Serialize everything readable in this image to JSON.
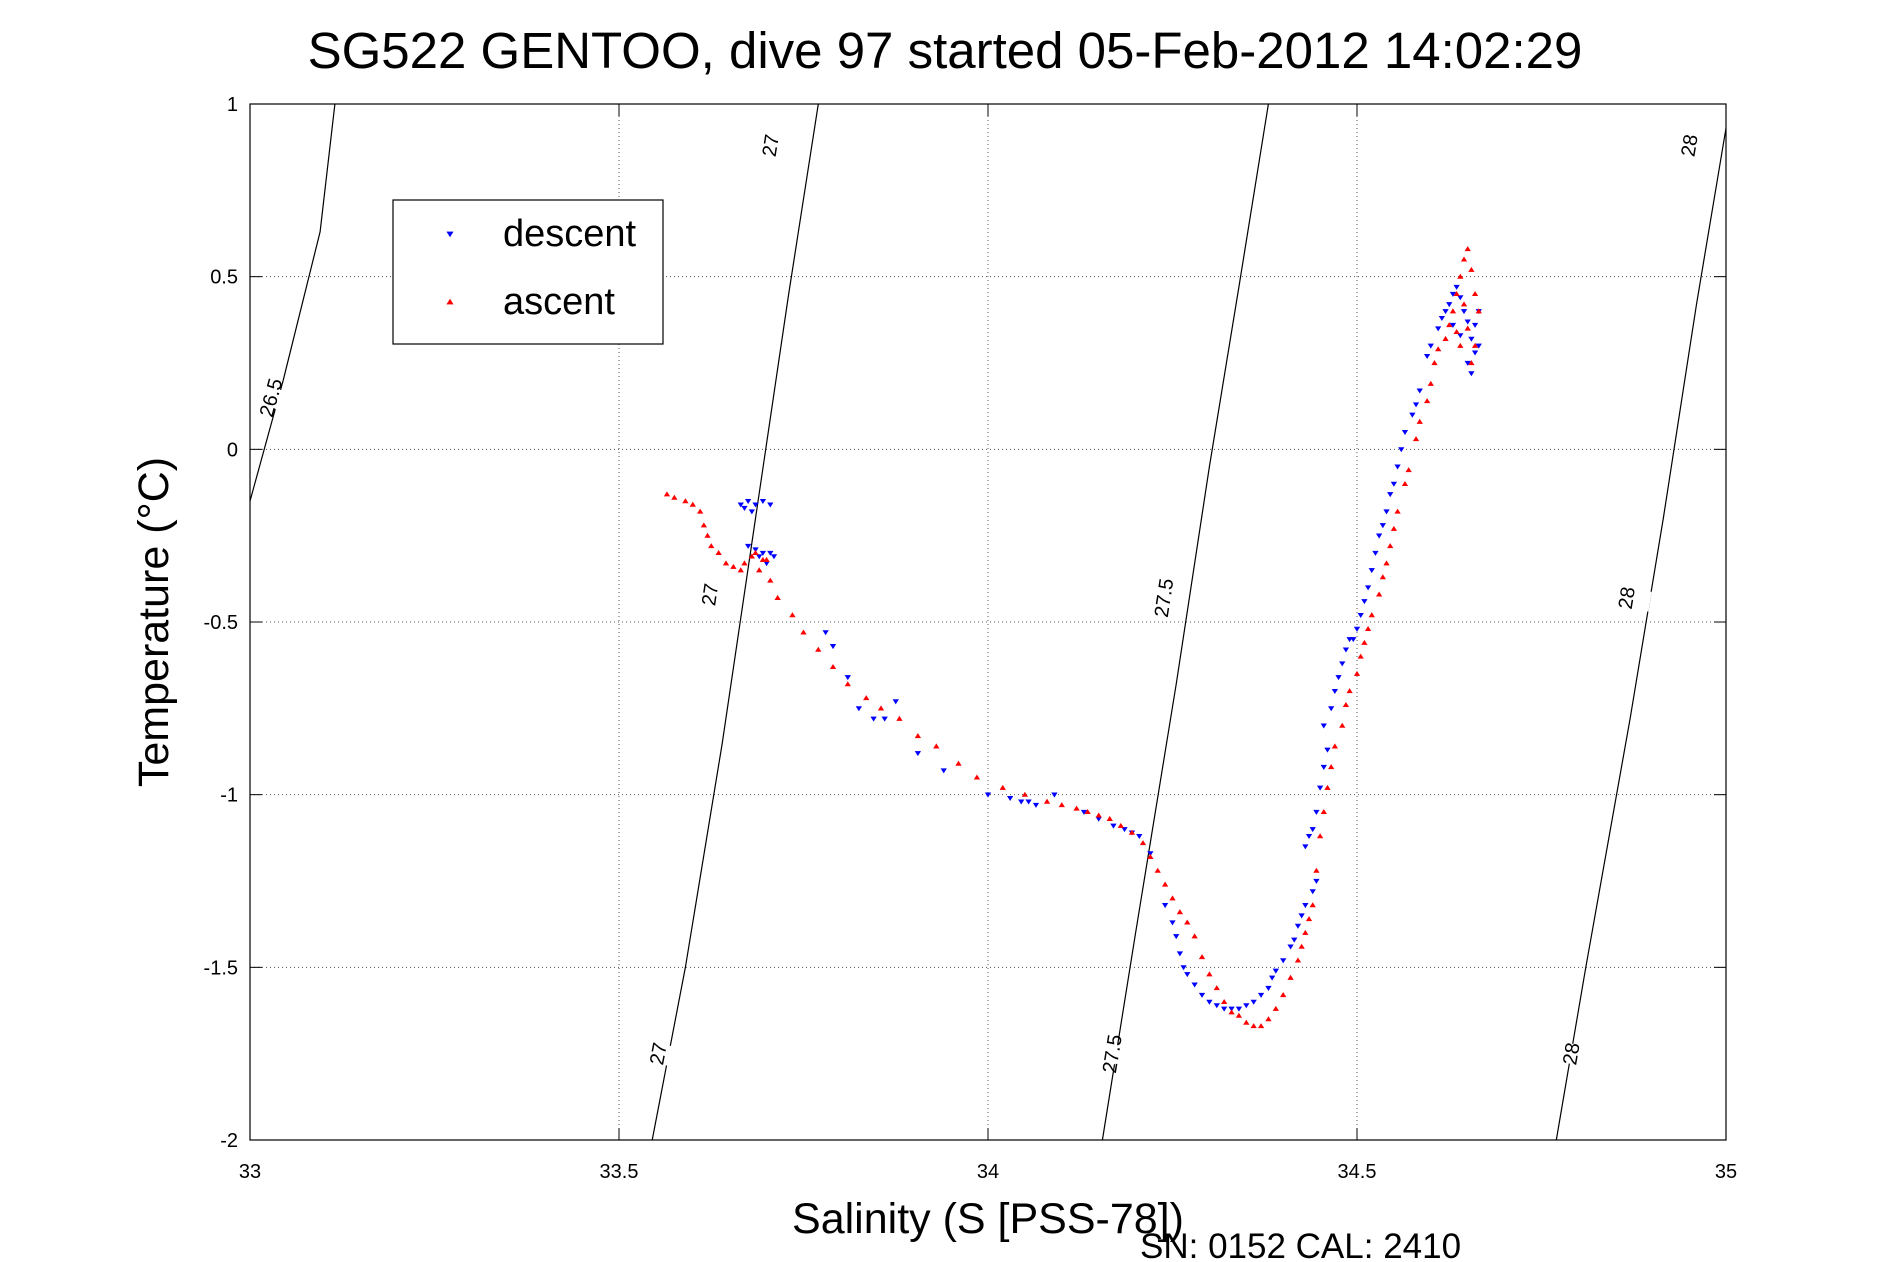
{
  "chart_data": {
    "type": "scatter",
    "title": "SG522 GENTOO, dive 97 started 05-Feb-2012 14:02:29",
    "xlabel": "Salinity (S [PSS-78])",
    "ylabel": "Temperature (°C)",
    "xlim": [
      33,
      35
    ],
    "ylim": [
      -2,
      1
    ],
    "xticks": [
      "33",
      "33.5",
      "34",
      "34.5",
      "35"
    ],
    "yticks": [
      "-2",
      "-1.5",
      "-1",
      "-0.5",
      "0",
      "0.5",
      "1"
    ],
    "grid": true,
    "legend_position": "top-left",
    "footer": "SN: 0152  CAL: 2410",
    "density_contours": [
      {
        "label": "26.5",
        "points": [
          [
            33.0,
            -0.15
          ],
          [
            33.045,
            0.2
          ],
          [
            33.095,
            0.63
          ],
          [
            33.115,
            1.0
          ]
        ],
        "label_at": [
          33.028,
          0.15
        ]
      },
      {
        "label": "27",
        "points": [
          [
            33.545,
            -2.0
          ],
          [
            33.59,
            -1.5
          ],
          [
            33.64,
            -0.85
          ],
          [
            33.685,
            -0.2
          ],
          [
            33.73,
            0.45
          ],
          [
            33.77,
            1.0
          ]
        ],
        "label_at": [
          [
            33.553,
            -1.75
          ],
          [
            33.623,
            -0.42
          ],
          [
            33.705,
            0.88
          ]
        ]
      },
      {
        "label": "27.5",
        "points": [
          [
            34.155,
            -2.0
          ],
          [
            34.2,
            -1.4
          ],
          [
            34.255,
            -0.68
          ],
          [
            34.3,
            -0.05
          ],
          [
            34.34,
            0.47
          ],
          [
            34.38,
            1.0
          ]
        ],
        "label_at": [
          [
            34.168,
            -1.75
          ],
          [
            34.238,
            -0.43
          ]
        ]
      },
      {
        "label": "28",
        "points": [
          [
            34.77,
            -2.0
          ],
          [
            34.81,
            -1.5
          ],
          [
            34.87,
            -0.78
          ],
          [
            34.915,
            -0.2
          ],
          [
            34.96,
            0.42
          ],
          [
            35.0,
            0.93
          ]
        ],
        "label_at": [
          [
            34.79,
            -1.75
          ],
          [
            34.865,
            -0.43
          ],
          [
            34.95,
            0.88
          ]
        ]
      }
    ],
    "series": [
      {
        "name": "descent",
        "color": "#0000ff",
        "marker": "triangle-down",
        "points": [
          [
            33.665,
            -0.16
          ],
          [
            33.675,
            -0.15
          ],
          [
            33.685,
            -0.16
          ],
          [
            33.695,
            -0.15
          ],
          [
            33.705,
            -0.16
          ],
          [
            33.67,
            -0.17
          ],
          [
            33.68,
            -0.18
          ],
          [
            33.675,
            -0.28
          ],
          [
            33.685,
            -0.29
          ],
          [
            33.695,
            -0.3
          ],
          [
            33.705,
            -0.3
          ],
          [
            33.71,
            -0.31
          ],
          [
            33.7,
            -0.33
          ],
          [
            33.69,
            -0.31
          ],
          [
            33.78,
            -0.53
          ],
          [
            33.79,
            -0.57
          ],
          [
            33.81,
            -0.66
          ],
          [
            33.825,
            -0.75
          ],
          [
            33.845,
            -0.78
          ],
          [
            33.86,
            -0.78
          ],
          [
            33.875,
            -0.73
          ],
          [
            33.905,
            -0.88
          ],
          [
            33.94,
            -0.93
          ],
          [
            34.0,
            -1.0
          ],
          [
            34.03,
            -1.01
          ],
          [
            34.045,
            -1.02
          ],
          [
            34.055,
            -1.02
          ],
          [
            34.065,
            -1.03
          ],
          [
            34.09,
            -1.0
          ],
          [
            34.13,
            -1.05
          ],
          [
            34.15,
            -1.07
          ],
          [
            34.17,
            -1.09
          ],
          [
            34.185,
            -1.1
          ],
          [
            34.195,
            -1.11
          ],
          [
            34.205,
            -1.12
          ],
          [
            34.22,
            -1.17
          ],
          [
            34.24,
            -1.32
          ],
          [
            34.25,
            -1.37
          ],
          [
            34.255,
            -1.41
          ],
          [
            34.26,
            -1.46
          ],
          [
            34.265,
            -1.5
          ],
          [
            34.27,
            -1.52
          ],
          [
            34.28,
            -1.55
          ],
          [
            34.29,
            -1.58
          ],
          [
            34.3,
            -1.6
          ],
          [
            34.31,
            -1.61
          ],
          [
            34.32,
            -1.62
          ],
          [
            34.33,
            -1.62
          ],
          [
            34.34,
            -1.62
          ],
          [
            34.35,
            -1.61
          ],
          [
            34.36,
            -1.6
          ],
          [
            34.37,
            -1.58
          ],
          [
            34.38,
            -1.56
          ],
          [
            34.385,
            -1.53
          ],
          [
            34.39,
            -1.51
          ],
          [
            34.4,
            -1.48
          ],
          [
            34.41,
            -1.44
          ],
          [
            34.415,
            -1.42
          ],
          [
            34.42,
            -1.38
          ],
          [
            34.425,
            -1.35
          ],
          [
            34.43,
            -1.32
          ],
          [
            34.44,
            -1.28
          ],
          [
            34.445,
            -1.25
          ],
          [
            34.43,
            -1.15
          ],
          [
            34.435,
            -1.12
          ],
          [
            34.44,
            -1.1
          ],
          [
            34.445,
            -1.05
          ],
          [
            34.45,
            -0.98
          ],
          [
            34.455,
            -0.92
          ],
          [
            34.46,
            -0.87
          ],
          [
            34.455,
            -0.8
          ],
          [
            34.465,
            -0.75
          ],
          [
            34.47,
            -0.7
          ],
          [
            34.475,
            -0.66
          ],
          [
            34.48,
            -0.62
          ],
          [
            34.485,
            -0.58
          ],
          [
            34.49,
            -0.55
          ],
          [
            34.495,
            -0.55
          ],
          [
            34.5,
            -0.52
          ],
          [
            34.505,
            -0.48
          ],
          [
            34.51,
            -0.44
          ],
          [
            34.515,
            -0.4
          ],
          [
            34.52,
            -0.35
          ],
          [
            34.525,
            -0.3
          ],
          [
            34.53,
            -0.25
          ],
          [
            34.535,
            -0.22
          ],
          [
            34.54,
            -0.18
          ],
          [
            34.545,
            -0.13
          ],
          [
            34.55,
            -0.1
          ],
          [
            34.555,
            -0.05
          ],
          [
            34.56,
            0.0
          ],
          [
            34.565,
            0.05
          ],
          [
            34.575,
            0.1
          ],
          [
            34.58,
            0.13
          ],
          [
            34.585,
            0.17
          ],
          [
            34.595,
            0.27
          ],
          [
            34.6,
            0.3
          ],
          [
            34.61,
            0.35
          ],
          [
            34.615,
            0.38
          ],
          [
            34.62,
            0.4
          ],
          [
            34.625,
            0.42
          ],
          [
            34.63,
            0.45
          ],
          [
            34.635,
            0.47
          ],
          [
            34.64,
            0.44
          ],
          [
            34.645,
            0.4
          ],
          [
            34.65,
            0.37
          ],
          [
            34.655,
            0.32
          ],
          [
            34.66,
            0.28
          ],
          [
            34.665,
            0.3
          ],
          [
            34.66,
            0.36
          ],
          [
            34.665,
            0.4
          ],
          [
            34.655,
            0.22
          ],
          [
            34.65,
            0.25
          ],
          [
            34.64,
            0.33
          ],
          [
            34.63,
            0.36
          ]
        ]
      },
      {
        "name": "ascent",
        "color": "#ff0000",
        "marker": "triangle-up",
        "points": [
          [
            33.565,
            -0.13
          ],
          [
            33.575,
            -0.14
          ],
          [
            33.59,
            -0.15
          ],
          [
            33.6,
            -0.16
          ],
          [
            33.61,
            -0.18
          ],
          [
            33.615,
            -0.22
          ],
          [
            33.62,
            -0.25
          ],
          [
            33.625,
            -0.28
          ],
          [
            33.635,
            -0.3
          ],
          [
            33.645,
            -0.33
          ],
          [
            33.655,
            -0.34
          ],
          [
            33.665,
            -0.35
          ],
          [
            33.67,
            -0.33
          ],
          [
            33.68,
            -0.31
          ],
          [
            33.685,
            -0.3
          ],
          [
            33.695,
            -0.32
          ],
          [
            33.7,
            -0.32
          ],
          [
            33.69,
            -0.35
          ],
          [
            33.705,
            -0.38
          ],
          [
            33.715,
            -0.43
          ],
          [
            33.735,
            -0.48
          ],
          [
            33.75,
            -0.53
          ],
          [
            33.77,
            -0.58
          ],
          [
            33.79,
            -0.63
          ],
          [
            33.81,
            -0.68
          ],
          [
            33.835,
            -0.72
          ],
          [
            33.855,
            -0.75
          ],
          [
            33.88,
            -0.78
          ],
          [
            33.905,
            -0.83
          ],
          [
            33.93,
            -0.86
          ],
          [
            33.96,
            -0.91
          ],
          [
            33.985,
            -0.95
          ],
          [
            34.02,
            -0.98
          ],
          [
            34.05,
            -1.0
          ],
          [
            34.08,
            -1.02
          ],
          [
            34.1,
            -1.03
          ],
          [
            34.12,
            -1.04
          ],
          [
            34.135,
            -1.05
          ],
          [
            34.15,
            -1.06
          ],
          [
            34.165,
            -1.07
          ],
          [
            34.18,
            -1.09
          ],
          [
            34.195,
            -1.11
          ],
          [
            34.21,
            -1.14
          ],
          [
            34.22,
            -1.18
          ],
          [
            34.23,
            -1.22
          ],
          [
            34.24,
            -1.26
          ],
          [
            34.25,
            -1.3
          ],
          [
            34.26,
            -1.34
          ],
          [
            34.27,
            -1.37
          ],
          [
            34.28,
            -1.41
          ],
          [
            34.29,
            -1.47
          ],
          [
            34.3,
            -1.52
          ],
          [
            34.31,
            -1.56
          ],
          [
            34.32,
            -1.6
          ],
          [
            34.33,
            -1.63
          ],
          [
            34.34,
            -1.64
          ],
          [
            34.35,
            -1.66
          ],
          [
            34.36,
            -1.67
          ],
          [
            34.37,
            -1.67
          ],
          [
            34.38,
            -1.65
          ],
          [
            34.39,
            -1.62
          ],
          [
            34.4,
            -1.58
          ],
          [
            34.41,
            -1.53
          ],
          [
            34.42,
            -1.48
          ],
          [
            34.425,
            -1.44
          ],
          [
            34.43,
            -1.4
          ],
          [
            34.435,
            -1.36
          ],
          [
            34.44,
            -1.32
          ],
          [
            34.445,
            -1.22
          ],
          [
            34.45,
            -1.12
          ],
          [
            34.455,
            -1.05
          ],
          [
            34.46,
            -0.98
          ],
          [
            34.465,
            -0.92
          ],
          [
            34.47,
            -0.86
          ],
          [
            34.48,
            -0.8
          ],
          [
            34.485,
            -0.74
          ],
          [
            34.49,
            -0.7
          ],
          [
            34.5,
            -0.65
          ],
          [
            34.505,
            -0.6
          ],
          [
            34.51,
            -0.56
          ],
          [
            34.515,
            -0.52
          ],
          [
            34.52,
            -0.48
          ],
          [
            34.53,
            -0.42
          ],
          [
            34.535,
            -0.37
          ],
          [
            34.54,
            -0.33
          ],
          [
            34.545,
            -0.28
          ],
          [
            34.55,
            -0.23
          ],
          [
            34.555,
            -0.18
          ],
          [
            34.565,
            -0.1
          ],
          [
            34.57,
            -0.06
          ],
          [
            34.58,
            0.03
          ],
          [
            34.585,
            0.08
          ],
          [
            34.595,
            0.14
          ],
          [
            34.6,
            0.19
          ],
          [
            34.605,
            0.25
          ],
          [
            34.61,
            0.29
          ],
          [
            34.62,
            0.32
          ],
          [
            34.625,
            0.36
          ],
          [
            34.63,
            0.4
          ],
          [
            34.635,
            0.45
          ],
          [
            34.64,
            0.5
          ],
          [
            34.645,
            0.55
          ],
          [
            34.65,
            0.58
          ],
          [
            34.655,
            0.52
          ],
          [
            34.66,
            0.45
          ],
          [
            34.665,
            0.4
          ],
          [
            34.66,
            0.3
          ],
          [
            34.655,
            0.25
          ],
          [
            34.65,
            0.35
          ],
          [
            34.645,
            0.42
          ],
          [
            34.64,
            0.3
          ],
          [
            34.635,
            0.34
          ]
        ]
      }
    ]
  }
}
